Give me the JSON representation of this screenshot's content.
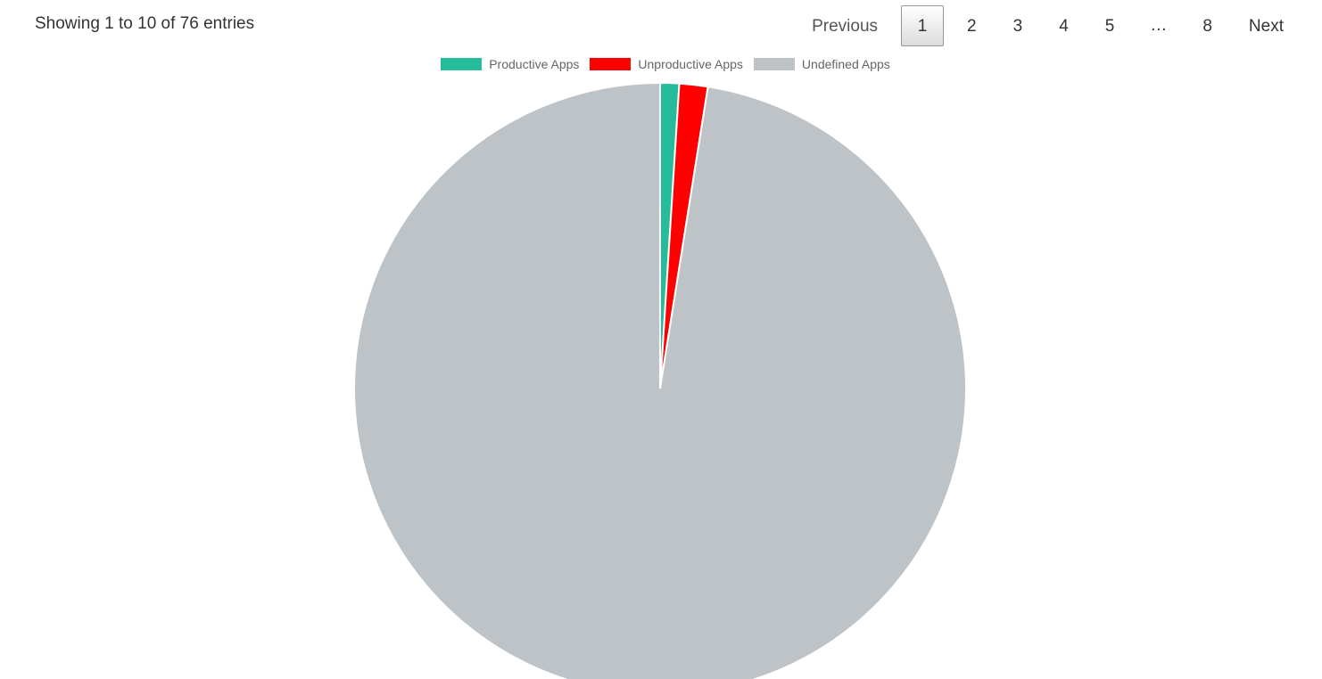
{
  "table_info": {
    "text": "Showing 1 to 10 of 76 entries"
  },
  "pagination": {
    "previous_label": "Previous",
    "next_label": "Next",
    "ellipsis": "…",
    "pages": [
      "1",
      "2",
      "3",
      "4",
      "5",
      "8"
    ],
    "current_page": "1"
  },
  "chart_data": {
    "type": "pie",
    "title": "",
    "categories": [
      "Productive Apps",
      "Unproductive Apps",
      "Undefined Apps"
    ],
    "values": [
      1,
      1.5,
      97.5
    ],
    "colors": [
      "#26bb9a",
      "#ff0000",
      "#bec3c7"
    ],
    "legend_position": "top"
  }
}
